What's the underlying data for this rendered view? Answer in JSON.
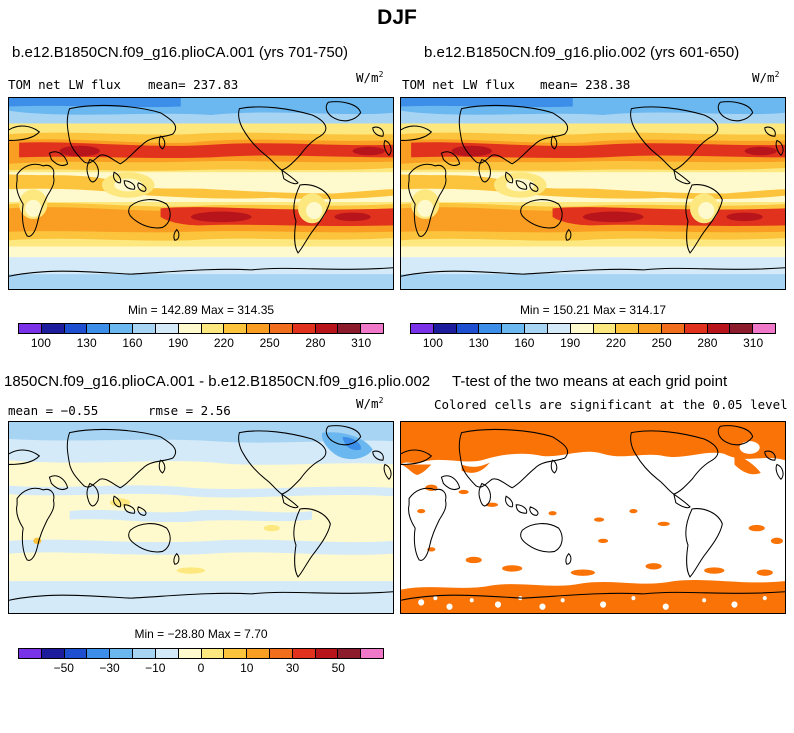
{
  "title": "DJF",
  "colors": {
    "mean_scale": [
      "#7a32e8",
      "#1c1c9c",
      "#1e4fd0",
      "#3d8ee8",
      "#6bb8f0",
      "#a8d4f4",
      "#d4eaf8",
      "#fffacd",
      "#fde880",
      "#fbc43c",
      "#f99e22",
      "#f06e1c",
      "#e0321c",
      "#b8141c",
      "#8c1c2c",
      "#f078c8"
    ],
    "diff_scale": [
      "#7a32e8",
      "#1c1c9c",
      "#1e4fd0",
      "#3d8ee8",
      "#6bb8f0",
      "#a8d4f4",
      "#d4eaf8",
      "#fffacd",
      "#fde880",
      "#fbc43c",
      "#f99e22",
      "#f06e1c",
      "#e0321c",
      "#b8141c",
      "#8c1c2c",
      "#f078c8"
    ],
    "significant": "#f97306"
  },
  "panels": {
    "p1": {
      "title": "b.e12.B1850CN.f09_g16.plioCA.001 (yrs 701-750)",
      "variable": "TOM net LW flux",
      "mean_label": "mean= 237.83",
      "units": "W/m",
      "units_exp": "2",
      "minmax": "Min = 142.89 Max = 314.35"
    },
    "p2": {
      "title": "b.e12.B1850CN.f09_g16.plio.002 (yrs 601-650)",
      "variable": "TOM net LW flux",
      "mean_label": "mean= 238.38",
      "units": "W/m",
      "units_exp": "2",
      "minmax": "Min = 150.21 Max = 314.17"
    },
    "p3": {
      "title": "1850CN.f09_g16.plioCA.001 - b.e12.B1850CN.f09_g16.plio.002",
      "mean_label": "mean =  −0.55",
      "rmse_label": "rmse =   2.56",
      "units": "W/m",
      "units_exp": "2",
      "minmax": "Min = −28.80 Max =   7.70"
    },
    "p4": {
      "title": "T-test of the two means at each grid point",
      "subtitle": "Colored cells are significant at the 0.05 level"
    }
  },
  "chart_data": [
    {
      "type": "heatmap",
      "title": "b.e12.B1850CN.f09_g16.plioCA.001 (yrs 701-750)",
      "variable": "TOM net LW flux",
      "units": "W/m2",
      "mean": 237.83,
      "min": 142.89,
      "max": 314.35,
      "colorbar_levels": [
        100,
        115,
        130,
        145,
        160,
        175,
        190,
        205,
        220,
        235,
        250,
        265,
        280,
        295,
        310
      ],
      "colorbar_labels": [
        "100",
        "130",
        "160",
        "190",
        "220",
        "250",
        "280",
        "310"
      ]
    },
    {
      "type": "heatmap",
      "title": "b.e12.B1850CN.f09_g16.plio.002 (yrs 601-650)",
      "variable": "TOM net LW flux",
      "units": "W/m2",
      "mean": 238.38,
      "min": 150.21,
      "max": 314.17,
      "colorbar_levels": [
        100,
        115,
        130,
        145,
        160,
        175,
        190,
        205,
        220,
        235,
        250,
        265,
        280,
        295,
        310
      ],
      "colorbar_labels": [
        "100",
        "130",
        "160",
        "190",
        "220",
        "250",
        "280",
        "310"
      ]
    },
    {
      "type": "heatmap",
      "title": "1850CN.f09_g16.plioCA.001 - b.e12.B1850CN.f09_g16.plio.002",
      "units": "W/m2",
      "mean": -0.55,
      "rmse": 2.56,
      "min": -28.8,
      "max": 7.7,
      "colorbar_levels": [
        -60,
        -50,
        -40,
        -30,
        -20,
        -10,
        -5,
        0,
        5,
        10,
        20,
        30,
        40,
        50,
        60
      ],
      "colorbar_labels": [
        "−50",
        "−30",
        "−10",
        "0",
        "10",
        "30",
        "50"
      ]
    },
    {
      "type": "heatmap",
      "title": "T-test of the two means at each grid point",
      "subtitle": "Colored cells are significant at the 0.05 level",
      "significance_level": 0.05
    }
  ]
}
